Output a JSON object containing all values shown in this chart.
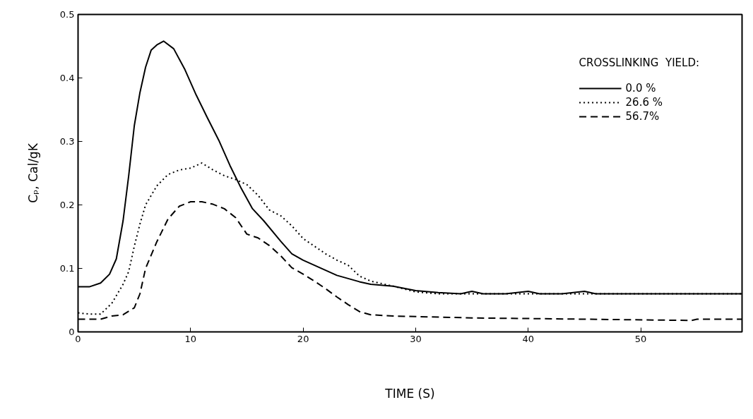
{
  "chart_data": {
    "type": "line",
    "xlabel": "TIME (S)",
    "ylabel": "Cₚ, Cal/gK",
    "legend_title": "CROSSLINKING  YIELD:",
    "legend": "top right",
    "grid": false,
    "xlim": [
      0,
      59
    ],
    "ylim": [
      0,
      0.5
    ],
    "xticks": [
      0,
      10,
      20,
      30,
      40,
      50
    ],
    "yticks": [
      0,
      0.1,
      0.2,
      0.3,
      0.4,
      0.5
    ],
    "series": [
      {
        "name": "0.0 %",
        "color": "#000000",
        "line_style": "solid",
        "x": [
          0,
          1,
          2,
          2.8,
          3.4,
          4,
          4.5,
          5,
          5.5,
          6,
          6.5,
          7,
          7.6,
          8.5,
          9.5,
          10.5,
          11.5,
          12.5,
          13.5,
          14.5,
          15.5,
          16.5,
          18,
          19,
          20,
          21.5,
          23,
          25,
          26,
          28,
          30,
          32,
          34,
          35,
          36,
          38,
          40,
          41,
          43,
          45,
          46,
          48,
          52,
          56,
          59
        ],
        "values": [
          0.071,
          0.071,
          0.077,
          0.091,
          0.115,
          0.175,
          0.246,
          0.325,
          0.377,
          0.417,
          0.444,
          0.452,
          0.458,
          0.446,
          0.413,
          0.373,
          0.337,
          0.302,
          0.262,
          0.226,
          0.194,
          0.175,
          0.143,
          0.123,
          0.113,
          0.101,
          0.089,
          0.079,
          0.075,
          0.072,
          0.065,
          0.062,
          0.06,
          0.064,
          0.06,
          0.06,
          0.064,
          0.06,
          0.06,
          0.064,
          0.06,
          0.06,
          0.06,
          0.06,
          0.06
        ]
      },
      {
        "name": "26.6 %",
        "color": "#000000",
        "line_style": "dotted",
        "x": [
          0,
          1,
          2,
          3,
          4,
          4.5,
          5,
          5.5,
          6,
          7,
          8,
          9,
          10,
          11,
          12,
          13,
          14,
          15,
          16,
          17,
          18,
          19,
          20,
          21,
          22,
          23,
          24,
          25,
          26,
          28,
          30,
          32,
          40,
          50,
          59
        ],
        "values": [
          0.03,
          0.028,
          0.028,
          0.045,
          0.075,
          0.095,
          0.135,
          0.17,
          0.2,
          0.23,
          0.248,
          0.255,
          0.258,
          0.266,
          0.255,
          0.246,
          0.24,
          0.232,
          0.215,
          0.192,
          0.183,
          0.167,
          0.147,
          0.135,
          0.123,
          0.113,
          0.105,
          0.088,
          0.08,
          0.072,
          0.063,
          0.06,
          0.06,
          0.06,
          0.06
        ]
      },
      {
        "name": "56.7%",
        "color": "#000000",
        "line_style": "dashed",
        "x": [
          0,
          2,
          3,
          4,
          5,
          5.5,
          6,
          7,
          8,
          9,
          10,
          11,
          12,
          13,
          14,
          15,
          16,
          17,
          18,
          19,
          20,
          21,
          22,
          23,
          24,
          25,
          26,
          28,
          35,
          45,
          54.5,
          55,
          59
        ],
        "values": [
          0.02,
          0.02,
          0.025,
          0.027,
          0.038,
          0.06,
          0.1,
          0.142,
          0.178,
          0.198,
          0.205,
          0.205,
          0.201,
          0.194,
          0.18,
          0.154,
          0.148,
          0.136,
          0.12,
          0.101,
          0.091,
          0.08,
          0.068,
          0.055,
          0.043,
          0.032,
          0.027,
          0.025,
          0.022,
          0.02,
          0.018,
          0.02,
          0.02
        ]
      }
    ]
  }
}
